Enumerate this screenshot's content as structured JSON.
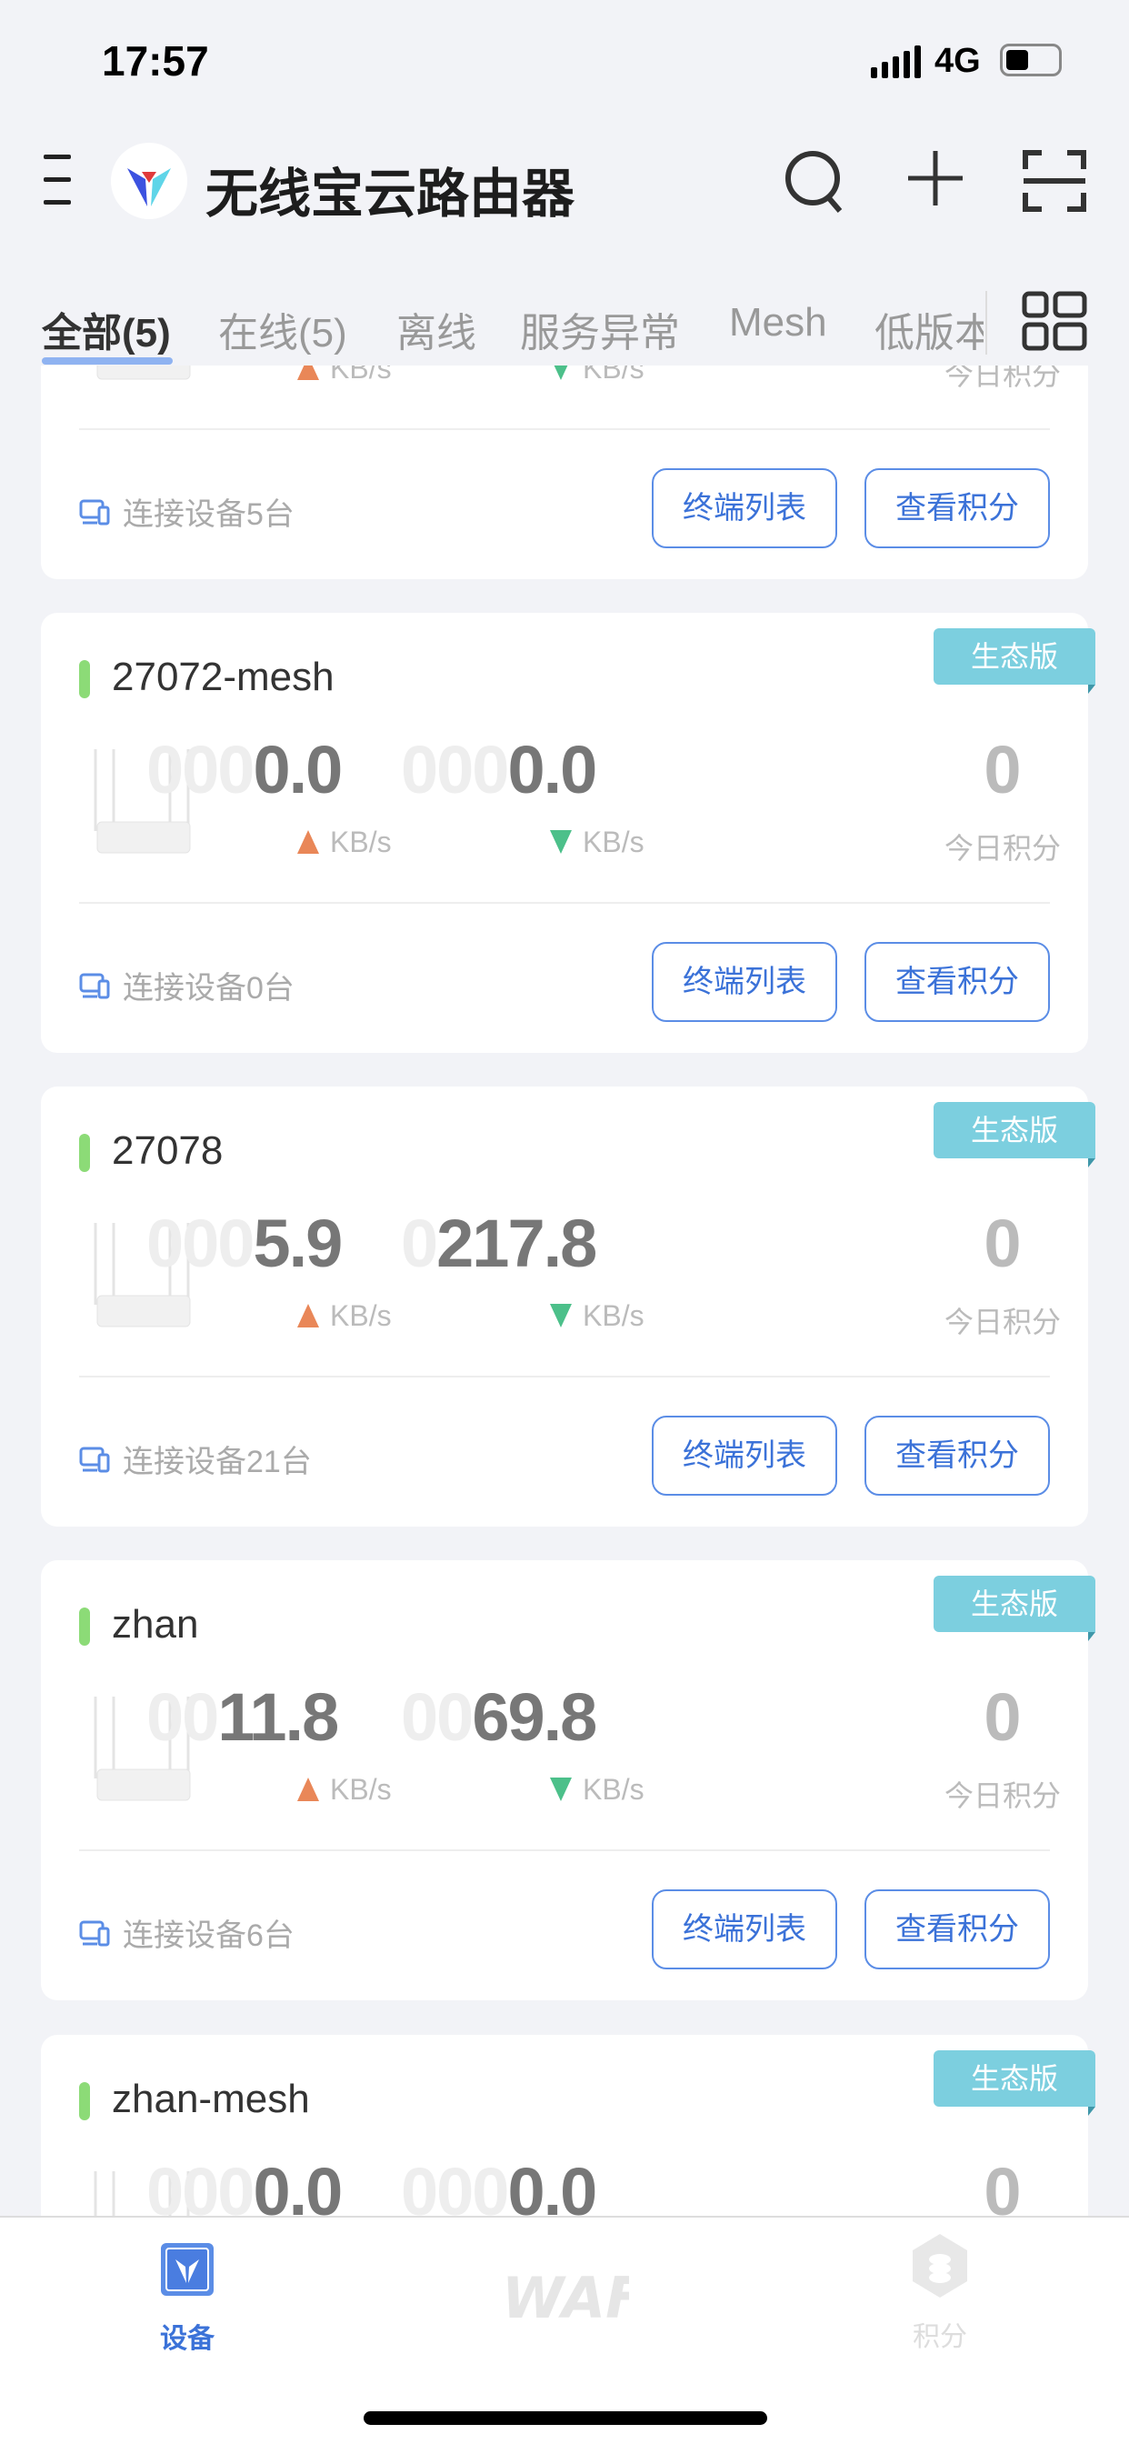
{
  "status": {
    "time": "17:57",
    "network": "4G"
  },
  "header": {
    "title": "无线宝云路由器"
  },
  "tabs": [
    "全部(5)",
    "在线(5)",
    "离线",
    "服务异常",
    "Mesh",
    "低版本"
  ],
  "card_common": {
    "unit": "KB/s",
    "points_label": "今日积分",
    "terminal_button": "终端列表",
    "points_button": "查看积分",
    "badge": "生态版"
  },
  "devices": [
    {
      "name": "",
      "up_pad": "",
      "up": "",
      "down_pad": "",
      "down": "",
      "points": "",
      "connected": "连接设备5台"
    },
    {
      "name": "27072-mesh",
      "up_pad": "000",
      "up": "0.0",
      "down_pad": "000",
      "down": "0.0",
      "points": "0",
      "connected": "连接设备0台"
    },
    {
      "name": "27078",
      "up_pad": "000",
      "up": "5.9",
      "down_pad": "0",
      "down": "217.8",
      "points": "0",
      "connected": "连接设备21台"
    },
    {
      "name": "zhan",
      "up_pad": "00",
      "up": "11.8",
      "down_pad": "00",
      "down": "69.8",
      "points": "0",
      "connected": "连接设备6台"
    },
    {
      "name": "zhan-mesh",
      "up_pad": "000",
      "up": "0.0",
      "down_pad": "000",
      "down": "0.0",
      "points": "0",
      "connected": ""
    }
  ],
  "nav": {
    "devices": "设备",
    "points": "积分"
  },
  "colors": {
    "accent": "#3b72d8",
    "badge": "#7ccfdf",
    "online": "#8cdb77",
    "up": "#e98758",
    "down": "#4cc08a"
  }
}
